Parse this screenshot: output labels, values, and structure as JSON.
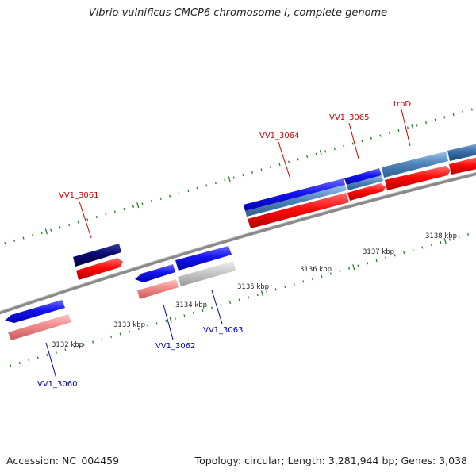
{
  "title": "Vibrio vulnificus CMCP6 chromosome I, complete genome",
  "footer": {
    "accession": "Accession: NC_004459",
    "summary": "Topology: circular; Length: 3,281,944 bp; Genes: 3,038"
  },
  "colors": {
    "forward_label": "#cc0000",
    "reverse_label": "#0000bb",
    "backbone": "#888888",
    "tick": "#2a7a2a"
  },
  "scale_labels": [
    "3132 kbp",
    "3133 kbp",
    "3134 kbp",
    "3135 kbp",
    "3136 kbp",
    "3137 kbp",
    "3138 kbp"
  ],
  "gene_labels": {
    "vv1_3060": "VV1_3060",
    "vv1_3061": "VV1_3061",
    "vv1_3062": "VV1_3062",
    "vv1_3063": "VV1_3063",
    "vv1_3064": "VV1_3064",
    "vv1_3065": "VV1_3065",
    "trpd": "trpD"
  }
}
